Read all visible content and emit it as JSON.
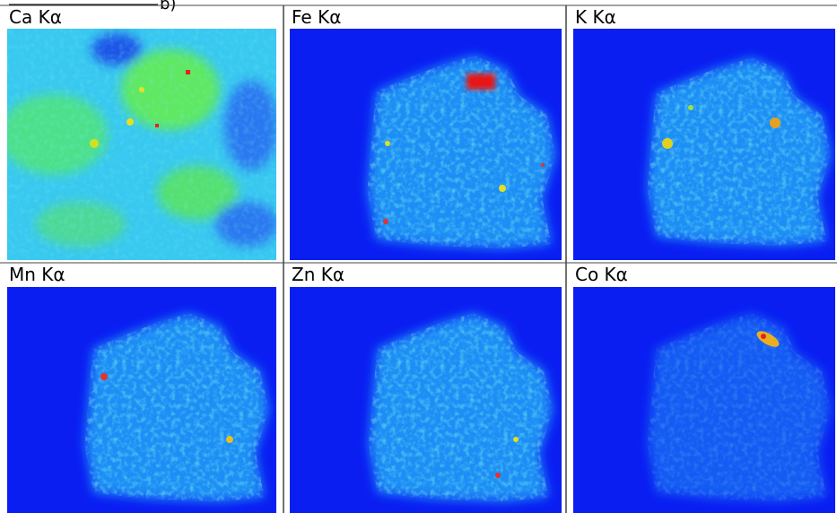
{
  "figure_label": "b)",
  "panels": [
    {
      "label": "Ca Kα"
    },
    {
      "label": "Fe Kα"
    },
    {
      "label": "K Kα"
    },
    {
      "label": "Mn Kα"
    },
    {
      "label": "Zn Kα"
    },
    {
      "label": "Co Kα"
    }
  ]
}
